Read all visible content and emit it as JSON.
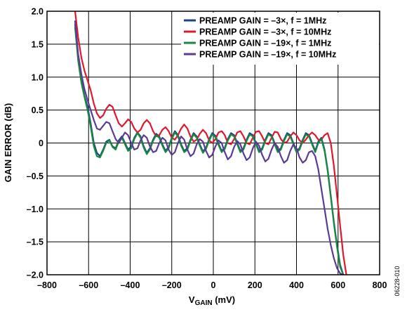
{
  "figure_id": "06228-010",
  "chart_data": {
    "type": "line",
    "title": "",
    "xlabel_main": "V",
    "xlabel_sub": "GAIN",
    "xlabel_unit": " (mV)",
    "ylabel": "GAIN ERROR (dB)",
    "xlim": [
      -800,
      800
    ],
    "ylim": [
      -2.0,
      2.0
    ],
    "grid": true,
    "legend_position": "top-right",
    "x_ticks": [
      "–800",
      "–600",
      "–400",
      "–200",
      "0",
      "200",
      "400",
      "600",
      "800"
    ],
    "y_ticks": [
      "2.0",
      "1.5",
      "1.0",
      "0.5",
      "0",
      "–0.5",
      "–1.0",
      "–1.5",
      "–2.0"
    ],
    "series": [
      {
        "name": "PREAMP GAIN = –3×, f = 1MHz",
        "color": "#1d3f8f",
        "x": [
          -665,
          -650,
          -635,
          -620,
          -605,
          -590,
          -575,
          -560,
          -545,
          -530,
          -515,
          -500,
          -485,
          -470,
          -455,
          -440,
          -425,
          -410,
          -395,
          -380,
          -365,
          -350,
          -335,
          -320,
          -305,
          -290,
          -275,
          -260,
          -245,
          -230,
          -215,
          -200,
          -185,
          -170,
          -155,
          -140,
          -125,
          -110,
          -95,
          -80,
          -65,
          -50,
          -35,
          -20,
          -5,
          10,
          25,
          40,
          55,
          70,
          85,
          100,
          115,
          130,
          145,
          160,
          175,
          190,
          205,
          220,
          235,
          250,
          265,
          280,
          295,
          310,
          325,
          340,
          355,
          370,
          385,
          400,
          415,
          430,
          445,
          460,
          475,
          490,
          505,
          520,
          535,
          550,
          565,
          580,
          595,
          610,
          625
        ],
        "y": [
          1.8,
          1.3,
          0.95,
          0.72,
          0.55,
          0.3,
          0.0,
          -0.15,
          -0.2,
          -0.1,
          0.02,
          0.05,
          -0.05,
          -0.08,
          0.04,
          0.1,
          0.0,
          -0.1,
          -0.05,
          0.08,
          0.16,
          0.1,
          -0.05,
          -0.15,
          -0.08,
          0.05,
          0.14,
          0.1,
          -0.02,
          -0.12,
          -0.06,
          0.08,
          0.18,
          0.12,
          -0.02,
          -0.12,
          -0.08,
          0.05,
          0.15,
          0.1,
          -0.02,
          -0.13,
          -0.07,
          0.06,
          0.15,
          0.11,
          -0.01,
          -0.12,
          -0.07,
          0.06,
          0.15,
          0.12,
          0.0,
          -0.12,
          -0.08,
          0.05,
          0.15,
          0.12,
          0.0,
          -0.12,
          -0.08,
          0.05,
          0.15,
          0.12,
          0.0,
          -0.12,
          -0.08,
          0.05,
          0.15,
          0.12,
          0.0,
          -0.12,
          -0.08,
          0.05,
          0.15,
          0.12,
          0.0,
          -0.12,
          0.02,
          0.08,
          -0.1,
          -0.4,
          -0.8,
          -1.2,
          -1.55,
          -1.85,
          -2.0
        ]
      },
      {
        "name": "PREAMP GAIN = –3×, f = 10MHz",
        "color": "#e0182d",
        "x": [
          -665,
          -650,
          -635,
          -620,
          -605,
          -590,
          -575,
          -560,
          -545,
          -530,
          -515,
          -500,
          -485,
          -470,
          -455,
          -440,
          -425,
          -410,
          -395,
          -380,
          -365,
          -350,
          -335,
          -320,
          -305,
          -290,
          -275,
          -260,
          -245,
          -230,
          -215,
          -200,
          -185,
          -170,
          -155,
          -140,
          -125,
          -110,
          -95,
          -80,
          -65,
          -50,
          -35,
          -20,
          -5,
          10,
          25,
          40,
          55,
          70,
          85,
          100,
          115,
          130,
          145,
          160,
          175,
          190,
          205,
          220,
          235,
          250,
          265,
          280,
          295,
          310,
          325,
          340,
          355,
          370,
          385,
          400,
          415,
          430,
          445,
          460,
          475,
          490,
          505,
          520,
          535,
          550,
          565,
          580,
          595,
          610,
          625,
          640
        ],
        "y": [
          2.0,
          1.6,
          1.3,
          1.1,
          0.95,
          0.8,
          0.6,
          0.45,
          0.38,
          0.42,
          0.52,
          0.58,
          0.55,
          0.42,
          0.3,
          0.25,
          0.3,
          0.36,
          0.32,
          0.22,
          0.16,
          0.2,
          0.3,
          0.35,
          0.3,
          0.18,
          0.1,
          0.12,
          0.2,
          0.24,
          0.18,
          0.08,
          0.05,
          0.12,
          0.22,
          0.28,
          0.22,
          0.1,
          0.02,
          0.05,
          0.14,
          0.2,
          0.15,
          0.04,
          0.0,
          0.06,
          0.16,
          0.18,
          0.12,
          0.0,
          -0.02,
          0.06,
          0.16,
          0.18,
          0.1,
          0.0,
          -0.02,
          0.08,
          0.17,
          0.18,
          0.1,
          0.0,
          -0.02,
          0.08,
          0.17,
          0.16,
          0.06,
          0.0,
          0.02,
          0.1,
          0.16,
          0.12,
          0.04,
          0.0,
          0.05,
          0.12,
          0.16,
          0.12,
          0.05,
          0.05,
          0.12,
          0.15,
          0.0,
          -0.35,
          -0.8,
          -1.25,
          -1.7,
          -2.0
        ]
      },
      {
        "name": "PREAMP GAIN = –19×, f = 1MHz",
        "color": "#188a3e",
        "x": [
          -665,
          -650,
          -635,
          -620,
          -605,
          -590,
          -575,
          -560,
          -545,
          -530,
          -515,
          -500,
          -485,
          -470,
          -455,
          -440,
          -425,
          -410,
          -395,
          -380,
          -365,
          -350,
          -335,
          -320,
          -305,
          -290,
          -275,
          -260,
          -245,
          -230,
          -215,
          -200,
          -185,
          -170,
          -155,
          -140,
          -125,
          -110,
          -95,
          -80,
          -65,
          -50,
          -35,
          -20,
          -5,
          10,
          25,
          40,
          55,
          70,
          85,
          100,
          115,
          130,
          145,
          160,
          175,
          190,
          205,
          220,
          235,
          250,
          265,
          280,
          295,
          310,
          325,
          340,
          355,
          370,
          385,
          400,
          415,
          430,
          445,
          460,
          475,
          490,
          505,
          520,
          535,
          550,
          565,
          580,
          595,
          610,
          625
        ],
        "y": [
          1.75,
          1.25,
          0.92,
          0.7,
          0.5,
          0.25,
          -0.05,
          -0.2,
          -0.22,
          -0.12,
          0.0,
          0.04,
          -0.06,
          -0.1,
          0.02,
          0.08,
          -0.02,
          -0.12,
          -0.08,
          0.06,
          0.15,
          0.08,
          -0.07,
          -0.17,
          -0.1,
          0.03,
          0.12,
          0.08,
          -0.04,
          -0.14,
          -0.08,
          0.06,
          0.16,
          0.1,
          -0.04,
          -0.14,
          -0.1,
          0.03,
          0.13,
          0.08,
          -0.04,
          -0.15,
          -0.09,
          0.04,
          0.13,
          0.09,
          -0.03,
          -0.14,
          -0.09,
          0.04,
          0.13,
          0.1,
          -0.02,
          -0.14,
          -0.1,
          0.03,
          0.13,
          0.1,
          -0.02,
          -0.14,
          -0.1,
          0.03,
          0.13,
          0.1,
          -0.02,
          -0.14,
          -0.1,
          0.03,
          0.13,
          0.1,
          -0.02,
          -0.14,
          -0.1,
          0.03,
          0.13,
          0.1,
          -0.02,
          -0.14,
          0.0,
          0.06,
          -0.12,
          -0.42,
          -0.82,
          -1.22,
          -1.58,
          -1.88,
          -2.0
        ]
      },
      {
        "name": "PREAMP GAIN = –19×, f = 10MHz",
        "color": "#5b3a96",
        "x": [
          -665,
          -650,
          -635,
          -620,
          -605,
          -590,
          -575,
          -560,
          -545,
          -530,
          -515,
          -500,
          -485,
          -470,
          -455,
          -440,
          -425,
          -410,
          -395,
          -380,
          -365,
          -350,
          -335,
          -320,
          -305,
          -290,
          -275,
          -260,
          -245,
          -230,
          -215,
          -200,
          -185,
          -170,
          -155,
          -140,
          -125,
          -110,
          -95,
          -80,
          -65,
          -50,
          -35,
          -20,
          -5,
          10,
          25,
          40,
          55,
          70,
          85,
          100,
          115,
          130,
          145,
          160,
          175,
          190,
          205,
          220,
          235,
          250,
          265,
          280,
          295,
          310,
          325,
          340,
          355,
          370,
          385,
          400,
          415,
          430,
          445,
          460,
          475,
          490,
          505,
          520,
          535,
          550,
          565,
          580,
          595,
          610,
          625
        ],
        "y": [
          1.85,
          1.35,
          1.05,
          0.82,
          0.65,
          0.5,
          0.35,
          0.22,
          0.2,
          0.26,
          0.32,
          0.3,
          0.18,
          0.06,
          0.0,
          0.08,
          0.16,
          0.12,
          0.0,
          -0.1,
          -0.08,
          0.04,
          0.12,
          0.08,
          -0.05,
          -0.14,
          -0.12,
          0.0,
          0.08,
          0.04,
          -0.1,
          -0.18,
          -0.14,
          0.0,
          0.1,
          0.05,
          -0.1,
          -0.2,
          -0.16,
          -0.02,
          0.06,
          0.02,
          -0.12,
          -0.22,
          -0.18,
          -0.05,
          0.04,
          0.0,
          -0.14,
          -0.25,
          -0.2,
          -0.06,
          0.03,
          -0.02,
          -0.16,
          -0.26,
          -0.22,
          -0.08,
          0.02,
          -0.04,
          -0.18,
          -0.28,
          -0.24,
          -0.1,
          0.0,
          -0.06,
          -0.2,
          -0.3,
          -0.26,
          -0.12,
          -0.02,
          -0.08,
          -0.22,
          -0.3,
          -0.26,
          -0.14,
          -0.12,
          -0.2,
          -0.4,
          -0.7,
          -1.0,
          -1.3,
          -1.55,
          -1.75,
          -1.9,
          -1.98,
          -2.0
        ]
      }
    ]
  }
}
